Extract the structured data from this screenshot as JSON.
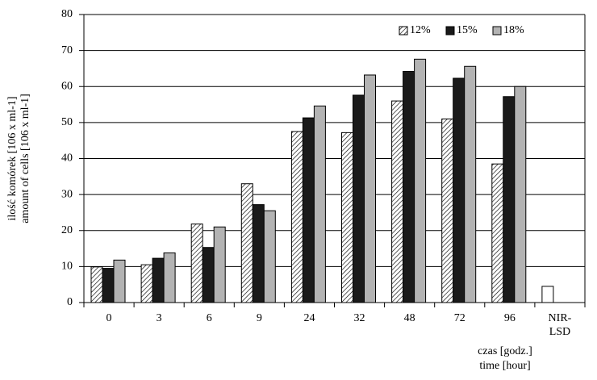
{
  "chart_data": {
    "type": "bar",
    "categories": [
      "0",
      "3",
      "6",
      "9",
      "24",
      "32",
      "48",
      "72",
      "96",
      "NIR-\nLSD"
    ],
    "series": [
      {
        "name": "12%",
        "color": "#ffffff",
        "pattern": "hatch",
        "values": [
          9.9,
          10.5,
          21.8,
          33.0,
          47.5,
          47.2,
          56.0,
          51.0,
          38.5,
          null
        ]
      },
      {
        "name": "15%",
        "color": "#1a1a1a",
        "values": [
          9.5,
          12.3,
          15.3,
          27.2,
          51.3,
          57.6,
          64.2,
          62.3,
          57.2,
          null
        ]
      },
      {
        "name": "18%",
        "color": "#b3b3b3",
        "values": [
          11.8,
          13.8,
          21.0,
          25.5,
          54.6,
          63.2,
          67.6,
          65.6,
          60.0,
          null
        ]
      }
    ],
    "nir_lsd": {
      "value": 4.5,
      "color": "#ffffff"
    },
    "y_label": [
      "ilość komórek [106 x ml-1]",
      "amount of cells [106 x ml-1]"
    ],
    "x_label": [
      "czas [godz.]",
      "time [hour]"
    ],
    "ylim": [
      0,
      80
    ],
    "yticks": [
      0,
      10,
      20,
      30,
      40,
      50,
      60,
      70,
      80
    ],
    "grid": true,
    "legend": "top-right"
  }
}
